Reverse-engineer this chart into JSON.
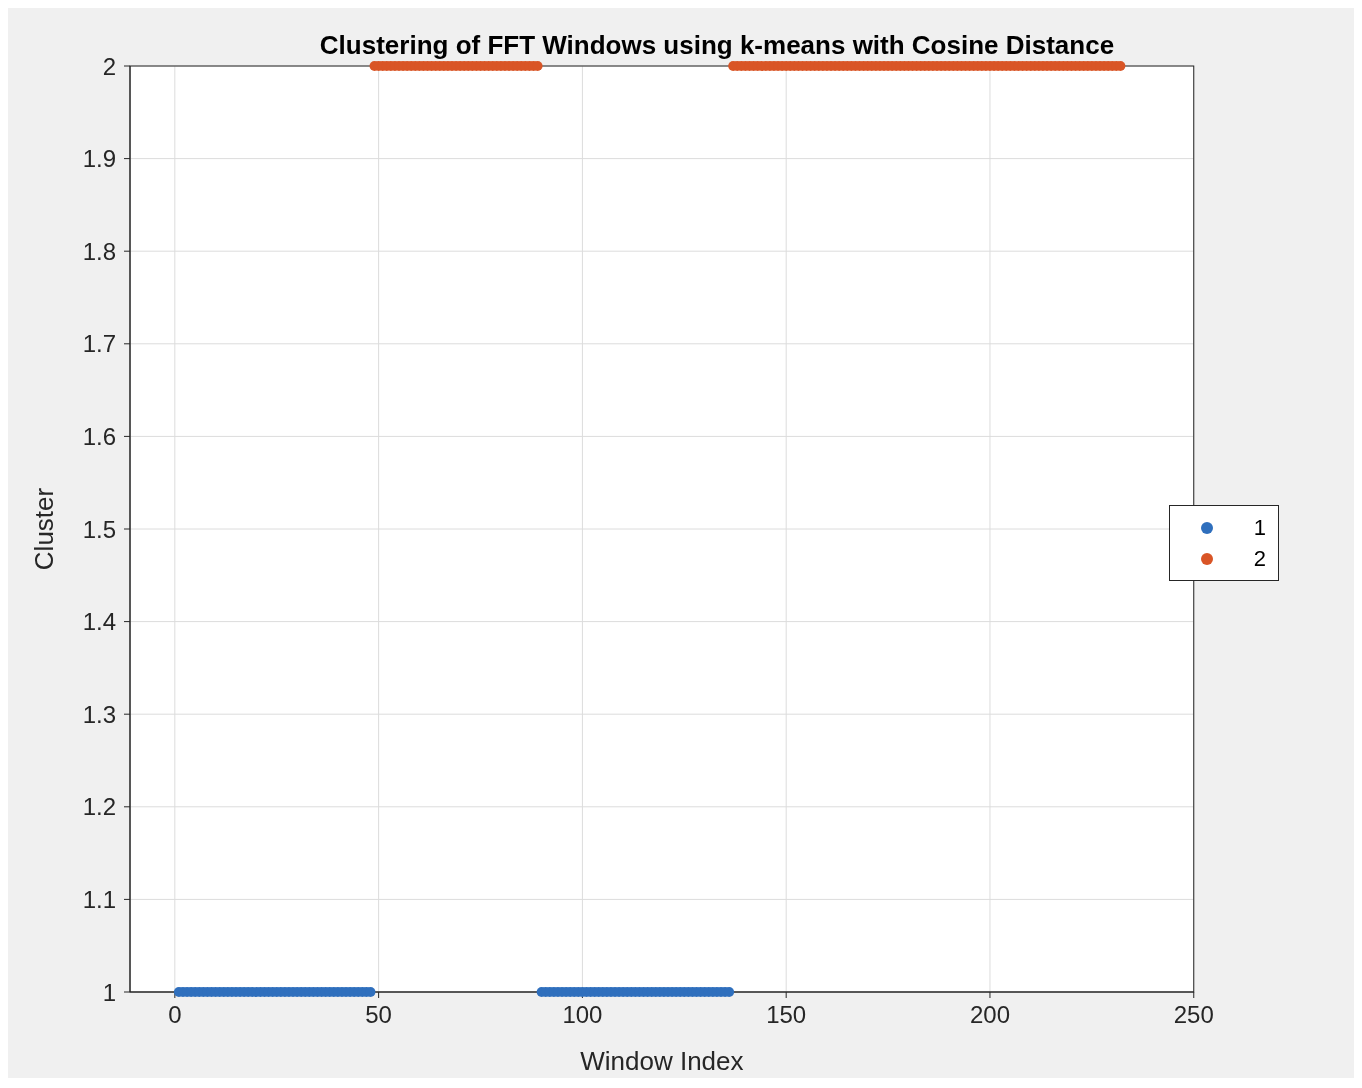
{
  "chart_data": {
    "type": "scatter",
    "title": "Clustering of FFT Windows using k-means with Cosine Distance",
    "xlabel": "Window Index",
    "ylabel": "Cluster",
    "xlim": [
      -11,
      250
    ],
    "xticks": [
      0,
      50,
      100,
      150,
      200,
      250
    ],
    "ylim": [
      1,
      2
    ],
    "yticks": [
      1,
      1.1,
      1.2,
      1.3,
      1.4,
      1.5,
      1.6,
      1.7,
      1.8,
      1.9,
      2
    ],
    "grid": true,
    "legend": "right",
    "marker": "circle",
    "series": [
      {
        "name": "1",
        "color": "#2f6fbd",
        "x": [
          1,
          2,
          3,
          4,
          5,
          6,
          7,
          8,
          9,
          10,
          11,
          12,
          13,
          14,
          15,
          16,
          17,
          18,
          19,
          20,
          21,
          22,
          23,
          24,
          25,
          26,
          27,
          28,
          29,
          30,
          31,
          32,
          33,
          34,
          35,
          36,
          37,
          38,
          39,
          40,
          41,
          42,
          43,
          44,
          45,
          46,
          47,
          48,
          90,
          91,
          92,
          93,
          94,
          95,
          96,
          97,
          98,
          99,
          100,
          101,
          102,
          103,
          104,
          105,
          106,
          107,
          108,
          109,
          110,
          111,
          112,
          113,
          114,
          115,
          116,
          117,
          118,
          119,
          120,
          121,
          122,
          123,
          124,
          125,
          126,
          127,
          128,
          129,
          130,
          131,
          132,
          133,
          134,
          135,
          136
        ],
        "values": [
          1,
          1,
          1,
          1,
          1,
          1,
          1,
          1,
          1,
          1,
          1,
          1,
          1,
          1,
          1,
          1,
          1,
          1,
          1,
          1,
          1,
          1,
          1,
          1,
          1,
          1,
          1,
          1,
          1,
          1,
          1,
          1,
          1,
          1,
          1,
          1,
          1,
          1,
          1,
          1,
          1,
          1,
          1,
          1,
          1,
          1,
          1,
          1,
          1,
          1,
          1,
          1,
          1,
          1,
          1,
          1,
          1,
          1,
          1,
          1,
          1,
          1,
          1,
          1,
          1,
          1,
          1,
          1,
          1,
          1,
          1,
          1,
          1,
          1,
          1,
          1,
          1,
          1,
          1,
          1,
          1,
          1,
          1,
          1,
          1,
          1,
          1,
          1,
          1,
          1,
          1,
          1,
          1,
          1,
          1
        ]
      },
      {
        "name": "2",
        "color": "#d95526",
        "x": [
          49,
          50,
          51,
          52,
          53,
          54,
          55,
          56,
          57,
          58,
          59,
          60,
          61,
          62,
          63,
          64,
          65,
          66,
          67,
          68,
          69,
          70,
          71,
          72,
          73,
          74,
          75,
          76,
          77,
          78,
          79,
          80,
          81,
          82,
          83,
          84,
          85,
          86,
          87,
          88,
          89,
          137,
          138,
          139,
          140,
          141,
          142,
          143,
          144,
          145,
          146,
          147,
          148,
          149,
          150,
          151,
          152,
          153,
          154,
          155,
          156,
          157,
          158,
          159,
          160,
          161,
          162,
          163,
          164,
          165,
          166,
          167,
          168,
          169,
          170,
          171,
          172,
          173,
          174,
          175,
          176,
          177,
          178,
          179,
          180,
          181,
          182,
          183,
          184,
          185,
          186,
          187,
          188,
          189,
          190,
          191,
          192,
          193,
          194,
          195,
          196,
          197,
          198,
          199,
          200,
          201,
          202,
          203,
          204,
          205,
          206,
          207,
          208,
          209,
          210,
          211,
          212,
          213,
          214,
          215,
          216,
          217,
          218,
          219,
          220,
          221,
          222,
          223,
          224,
          225,
          226,
          227,
          228,
          229,
          230,
          231,
          232
        ],
        "values": [
          2,
          2,
          2,
          2,
          2,
          2,
          2,
          2,
          2,
          2,
          2,
          2,
          2,
          2,
          2,
          2,
          2,
          2,
          2,
          2,
          2,
          2,
          2,
          2,
          2,
          2,
          2,
          2,
          2,
          2,
          2,
          2,
          2,
          2,
          2,
          2,
          2,
          2,
          2,
          2,
          2,
          2,
          2,
          2,
          2,
          2,
          2,
          2,
          2,
          2,
          2,
          2,
          2,
          2,
          2,
          2,
          2,
          2,
          2,
          2,
          2,
          2,
          2,
          2,
          2,
          2,
          2,
          2,
          2,
          2,
          2,
          2,
          2,
          2,
          2,
          2,
          2,
          2,
          2,
          2,
          2,
          2,
          2,
          2,
          2,
          2,
          2,
          2,
          2,
          2,
          2,
          2,
          2,
          2,
          2,
          2,
          2,
          2,
          2,
          2,
          2,
          2,
          2,
          2,
          2,
          2,
          2,
          2,
          2,
          2,
          2,
          2,
          2,
          2,
          2,
          2,
          2,
          2,
          2,
          2,
          2,
          2,
          2,
          2,
          2,
          2,
          2,
          2,
          2,
          2,
          2,
          2,
          2,
          2,
          2,
          2,
          2
        ]
      }
    ]
  }
}
